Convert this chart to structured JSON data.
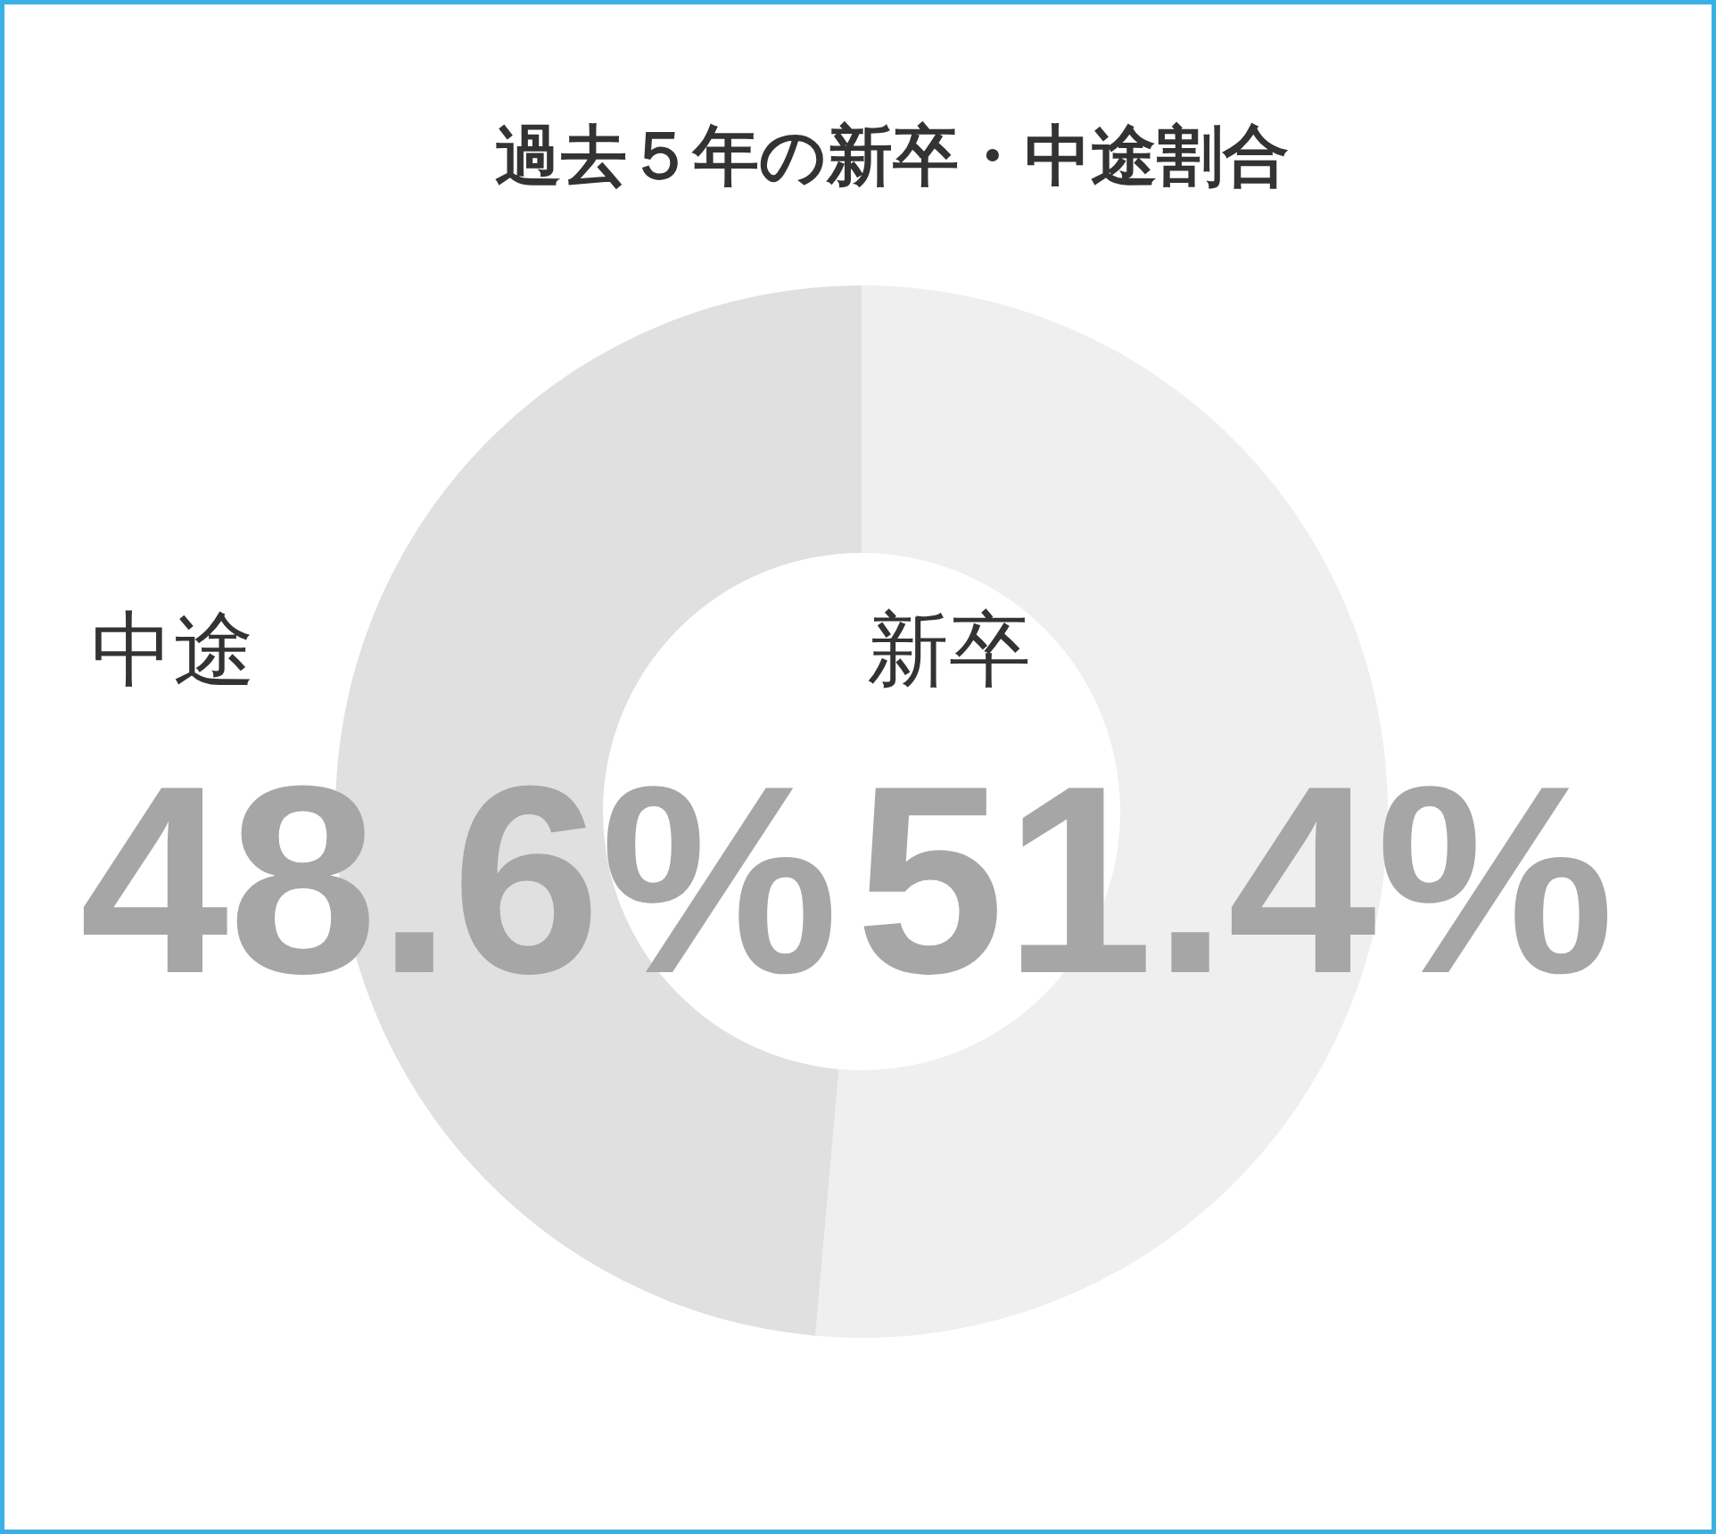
{
  "chart_data": {
    "type": "donut",
    "title": "過去５年の新卒・中途割合",
    "categories": [
      "新卒",
      "中途"
    ],
    "values": [
      51.4,
      48.6
    ],
    "colors": [
      "#efefef",
      "#e0e0e0"
    ],
    "value_labels": [
      "51.4%",
      "48.6%"
    ]
  }
}
